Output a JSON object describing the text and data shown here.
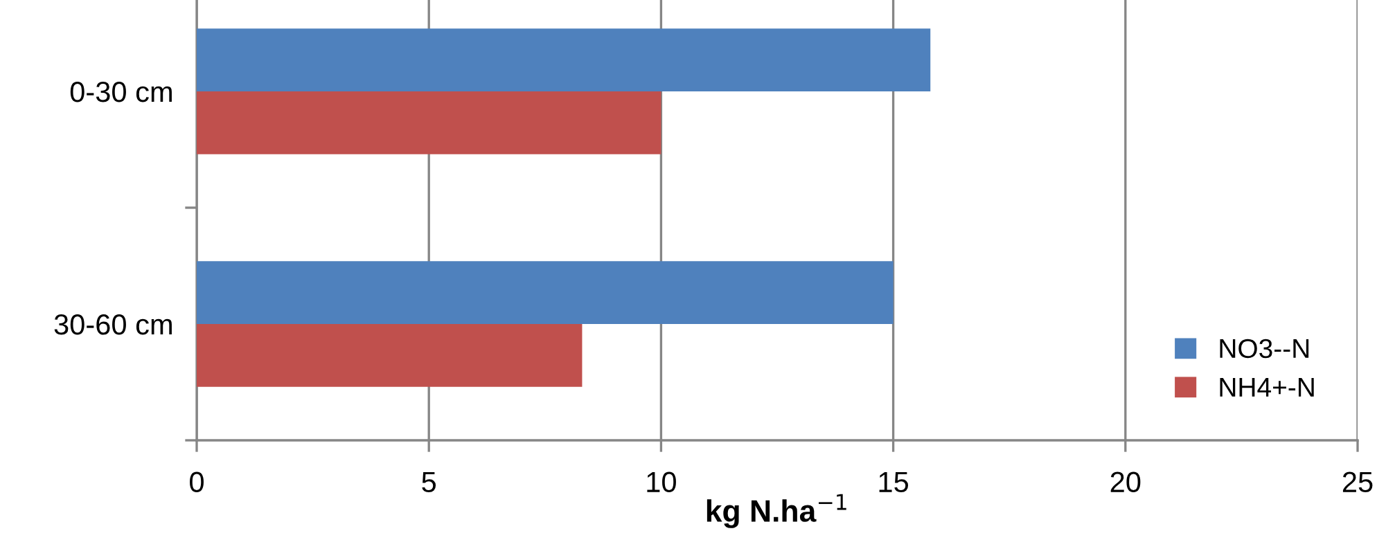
{
  "chart_data": {
    "type": "bar",
    "orientation": "horizontal",
    "xlabel": "kg N.ha$^{−1}$",
    "categories": [
      "0-30 cm",
      "30-60 cm"
    ],
    "series": [
      {
        "name": "NO3--N",
        "color": "#4f81bd",
        "values": [
          15.8,
          15
        ]
      },
      {
        "name": "NH4+-N",
        "color": "#c0504d",
        "values": [
          10,
          8.3
        ]
      }
    ],
    "xlim": [
      0,
      25
    ],
    "xticks": [
      0,
      5,
      10,
      15,
      20,
      25
    ],
    "grid": "x",
    "legend": "bottom right"
  }
}
